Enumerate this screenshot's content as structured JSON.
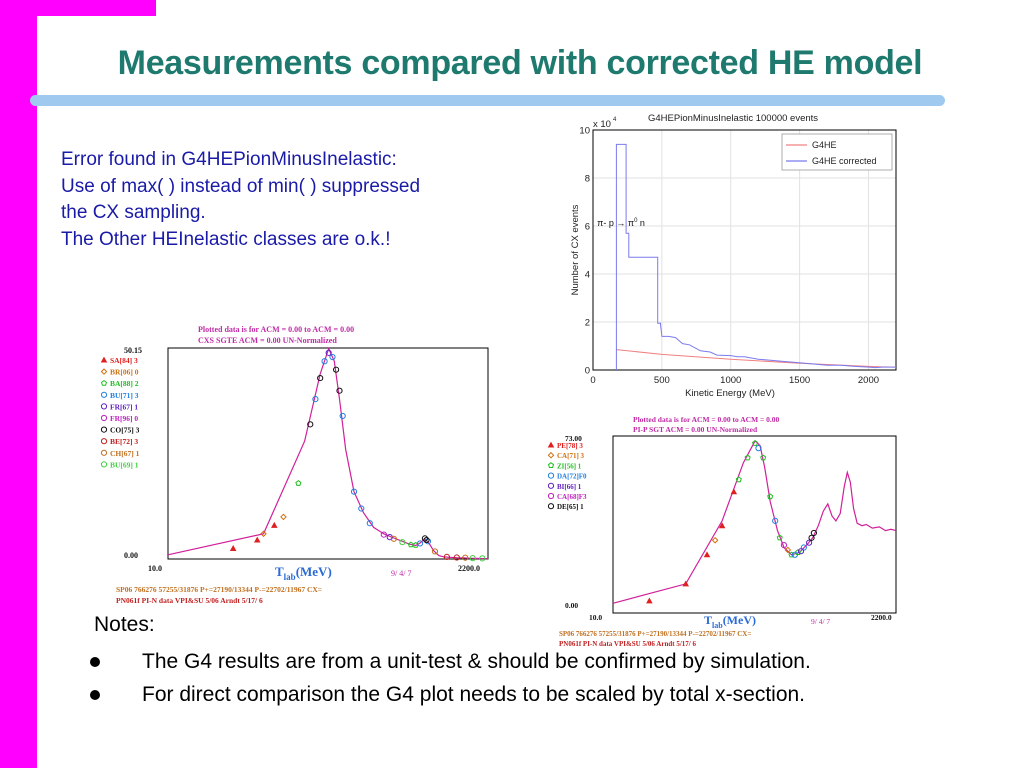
{
  "slide": {
    "title": "Measurements compared with corrected HE model",
    "colors": {
      "accent_bar": "#ff00ff",
      "title": "#1e7a6e",
      "rule": "#9fc9ee",
      "body_text": "#1a1aa8"
    },
    "error_lines": [
      "Error found in G4HEPionMinusInelastic:",
      "Use of max( ) instead of min( ) suppressed",
      "the CX sampling.",
      "The Other HEInelastic classes are o.k.!"
    ],
    "notes": {
      "heading": "Notes:",
      "bullets": [
        "The G4 results are from a unit-test & should be confirmed by simulation.",
        "For direct comparison the G4 plot needs to be scaled by total x-section."
      ]
    }
  },
  "chart_data": [
    {
      "type": "line",
      "title": "G4HEPionMinusInelastic   100000 events",
      "xlabel": "Kinetic Energy (MeV)",
      "ylabel": "Number of CX events",
      "y_multiplier": "x 10",
      "y_multiplier_exp": "4",
      "xlim": [
        0,
        2200
      ],
      "ylim": [
        0,
        10
      ],
      "xticks": [
        0,
        500,
        1000,
        1500,
        2000
      ],
      "yticks": [
        0,
        2,
        4,
        6,
        8,
        10
      ],
      "annotation": {
        "text_a": "π",
        "text_b": "- p → π",
        "text_c": "0",
        "text_d": " n",
        "x": 30,
        "y": 6
      },
      "grid": true,
      "legend": "top-right",
      "series": [
        {
          "name": "G4HE",
          "color": "#f08080",
          "x": [
            170,
            500,
            1000,
            1500,
            2000,
            2100,
            2200
          ],
          "y": [
            0.85,
            0.65,
            0.45,
            0.28,
            0.15,
            0.13,
            0.12
          ]
        },
        {
          "name": "G4HE corrected",
          "color": "#7b7bef",
          "x": [
            170,
            170,
            240,
            240,
            260,
            260,
            360,
            360,
            470,
            470,
            490,
            490,
            500,
            550,
            600,
            650,
            700,
            780,
            850,
            900,
            1000,
            1050,
            1100,
            1150,
            1200,
            1300,
            1400,
            1500,
            1600,
            1700,
            1800,
            1900,
            2000,
            2050,
            2100,
            2200
          ],
          "y": [
            0,
            9.4,
            9.4,
            5.7,
            5.7,
            4.7,
            4.7,
            4.7,
            4.7,
            1.95,
            1.95,
            1.9,
            1.4,
            1.4,
            1.35,
            1.1,
            1.05,
            0.8,
            0.75,
            0.62,
            0.6,
            0.55,
            0.55,
            0.5,
            0.45,
            0.4,
            0.35,
            0.3,
            0.25,
            0.2,
            0.2,
            0.15,
            0.12,
            0.1,
            0.12,
            0.12
          ]
        }
      ]
    },
    {
      "type": "scatter",
      "header_line1": "Plotted data is for ACM =   0.00 to ACM =   0.00",
      "header_line2": "CXS   SGTE   ACM =    0.00 UN-Normalized",
      "ymax_label": "50.15",
      "ymin_label": "0.00",
      "xmin_label": "10.0",
      "xmax_label": "2200.0",
      "xlabel_main": "T",
      "xlabel_sub": "lab",
      "xlabel_unit": "(MeV)",
      "date_label": "9/ 4/ 7",
      "footer_line1": "SP06 766276 57255/31876 P+=27190/13344 P-=22702/11967 CX=",
      "footer_line2": "PN061f  PI-N data VPI&SU   5/06   Arndt  5/17/ 6",
      "legend": [
        {
          "label": "SA[84] 3",
          "color": "#e02020",
          "marker": "triangle"
        },
        {
          "label": "BR[06] 0",
          "color": "#d07010",
          "marker": "diamond"
        },
        {
          "label": "BA[88] 2",
          "color": "#20c020",
          "marker": "pentagon"
        },
        {
          "label": "BU[71] 3",
          "color": "#2080e0",
          "marker": "circle"
        },
        {
          "label": "FR[67] 1",
          "color": "#6020c0",
          "marker": "circle"
        },
        {
          "label": "FR[96] 0",
          "color": "#c020c0",
          "marker": "circle"
        },
        {
          "label": "CO[75] 3",
          "color": "#101010",
          "marker": "circle"
        },
        {
          "label": "BE[72] 3",
          "color": "#c02020",
          "marker": "circle"
        },
        {
          "label": "CH[67] 1",
          "color": "#c07020",
          "marker": "circle"
        },
        {
          "label": "BU[69] 1",
          "color": "#40d040",
          "marker": "circle"
        }
      ],
      "curve_color": "#d0209a",
      "curve": {
        "x": [
          10,
          50,
          100,
          130,
          150,
          165,
          180,
          200,
          230,
          270,
          320,
          380,
          450,
          520,
          580,
          650,
          700,
          760,
          820,
          880,
          960,
          1050,
          1150,
          1300,
          1450,
          1600,
          1800,
          2000,
          2200
        ],
        "y": [
          1.0,
          6.0,
          28.0,
          44.0,
          50.0,
          47.0,
          38.0,
          26.0,
          16.0,
          11.0,
          7.5,
          6.0,
          5.0,
          4.2,
          3.6,
          3.2,
          3.8,
          4.8,
          3.6,
          2.0,
          0.8,
          0.5,
          0.4,
          0.3,
          0.25,
          0.2,
          0.15,
          0.1,
          0.1
        ]
      },
      "points": [
        {
          "s": 0,
          "x": 30,
          "y": 2.5
        },
        {
          "s": 0,
          "x": 45,
          "y": 4.5
        },
        {
          "s": 0,
          "x": 60,
          "y": 8
        },
        {
          "s": 1,
          "x": 50,
          "y": 6
        },
        {
          "s": 1,
          "x": 70,
          "y": 10
        },
        {
          "s": 2,
          "x": 90,
          "y": 18
        },
        {
          "s": 2,
          "x": 600,
          "y": 3.4
        },
        {
          "s": 2,
          "x": 650,
          "y": 3.3
        },
        {
          "s": 3,
          "x": 120,
          "y": 38
        },
        {
          "s": 3,
          "x": 140,
          "y": 47
        },
        {
          "s": 3,
          "x": 160,
          "y": 48
        },
        {
          "s": 3,
          "x": 190,
          "y": 34
        },
        {
          "s": 3,
          "x": 230,
          "y": 16
        },
        {
          "s": 3,
          "x": 260,
          "y": 12
        },
        {
          "s": 3,
          "x": 300,
          "y": 8.5
        },
        {
          "s": 3,
          "x": 700,
          "y": 3.7
        },
        {
          "s": 3,
          "x": 800,
          "y": 4.2
        },
        {
          "s": 4,
          "x": 150,
          "y": 49
        },
        {
          "s": 4,
          "x": 420,
          "y": 5.2
        },
        {
          "s": 5,
          "x": 380,
          "y": 5.8
        },
        {
          "s": 6,
          "x": 110,
          "y": 32
        },
        {
          "s": 6,
          "x": 130,
          "y": 43
        },
        {
          "s": 6,
          "x": 170,
          "y": 45
        },
        {
          "s": 6,
          "x": 180,
          "y": 40
        },
        {
          "s": 6,
          "x": 760,
          "y": 4.9
        },
        {
          "s": 6,
          "x": 780,
          "y": 4.5
        },
        {
          "s": 7,
          "x": 1100,
          "y": 0.5
        },
        {
          "s": 7,
          "x": 1300,
          "y": 0.35
        },
        {
          "s": 8,
          "x": 450,
          "y": 4.8
        },
        {
          "s": 8,
          "x": 900,
          "y": 1.8
        },
        {
          "s": 8,
          "x": 1500,
          "y": 0.3
        },
        {
          "s": 9,
          "x": 520,
          "y": 4.0
        },
        {
          "s": 9,
          "x": 1700,
          "y": 0.2
        },
        {
          "s": 9,
          "x": 2000,
          "y": 0.15
        }
      ]
    },
    {
      "type": "scatter",
      "header_line1": "Plotted data is for ACM =   0.00 to ACM =   0.00",
      "header_line2": "PI-P  SGT    ACM =    0.00 UN-Normalized",
      "ymax_label": "73.00",
      "ymin_label": "0.00",
      "xmin_label": "10.0",
      "xmax_label": "2200.0",
      "xlabel_main": "T",
      "xlabel_sub": "lab",
      "xlabel_unit": "(MeV)",
      "date_label": "9/ 4/ 7",
      "footer_line1": "SP06 766276 57255/31876 P+=27190/13344 P-=22702/11967 CX=",
      "footer_line2": "PN061f  PI-N data VPI&SU   5/06   Arndt  5/17/ 6",
      "legend": [
        {
          "label": "PE[78] 3",
          "color": "#e02020",
          "marker": "triangle"
        },
        {
          "label": "CA[71] 3",
          "color": "#d07010",
          "marker": "diamond"
        },
        {
          "label": "ZI[56] 1",
          "color": "#20c020",
          "marker": "pentagon"
        },
        {
          "label": "DA[72]F0",
          "color": "#2080e0",
          "marker": "circle"
        },
        {
          "label": "BI[66] 1",
          "color": "#6020c0",
          "marker": "circle"
        },
        {
          "label": "CA[68]F3",
          "color": "#c020c0",
          "marker": "circle"
        },
        {
          "label": "DE[65] 1",
          "color": "#101010",
          "marker": "circle"
        }
      ],
      "curve_color": "#d0209a",
      "curve": {
        "x": [
          10,
          40,
          80,
          120,
          150,
          165,
          180,
          200,
          230,
          260,
          300,
          350,
          400,
          450,
          500,
          550,
          600,
          650,
          700,
          760,
          820,
          870,
          920,
          980,
          1050,
          1150,
          1250,
          1400,
          1600,
          1800,
          2000,
          2200
        ],
        "y": [
          4.0,
          12.0,
          38.0,
          62.0,
          71.0,
          69.0,
          60.0,
          46.0,
          34.0,
          27.0,
          24.0,
          25.0,
          28.0,
          31.0,
          36.0,
          42.0,
          45.0,
          40.0,
          38.0,
          41.0,
          52.0,
          58.0,
          54.0,
          43.0,
          37.0,
          36.0,
          36.5,
          35.0,
          35.5,
          34.0,
          34.5,
          34.0
        ]
      },
      "points": [
        {
          "s": 0,
          "x": 20,
          "y": 5
        },
        {
          "s": 0,
          "x": 40,
          "y": 12
        },
        {
          "s": 0,
          "x": 60,
          "y": 24
        },
        {
          "s": 0,
          "x": 80,
          "y": 36
        },
        {
          "s": 0,
          "x": 100,
          "y": 50
        },
        {
          "s": 1,
          "x": 70,
          "y": 30
        },
        {
          "s": 1,
          "x": 280,
          "y": 26
        },
        {
          "s": 2,
          "x": 110,
          "y": 55
        },
        {
          "s": 2,
          "x": 130,
          "y": 64
        },
        {
          "s": 2,
          "x": 150,
          "y": 70
        },
        {
          "s": 2,
          "x": 175,
          "y": 64
        },
        {
          "s": 2,
          "x": 200,
          "y": 48
        },
        {
          "s": 2,
          "x": 240,
          "y": 31
        },
        {
          "s": 2,
          "x": 300,
          "y": 24
        },
        {
          "s": 2,
          "x": 340,
          "y": 25
        },
        {
          "s": 3,
          "x": 160,
          "y": 68
        },
        {
          "s": 3,
          "x": 220,
          "y": 38
        },
        {
          "s": 3,
          "x": 320,
          "y": 24
        },
        {
          "s": 3,
          "x": 380,
          "y": 27
        },
        {
          "s": 4,
          "x": 360,
          "y": 25.5
        },
        {
          "s": 4,
          "x": 420,
          "y": 29
        },
        {
          "s": 5,
          "x": 260,
          "y": 28
        },
        {
          "s": 6,
          "x": 440,
          "y": 31
        },
        {
          "s": 6,
          "x": 460,
          "y": 33
        }
      ]
    }
  ]
}
